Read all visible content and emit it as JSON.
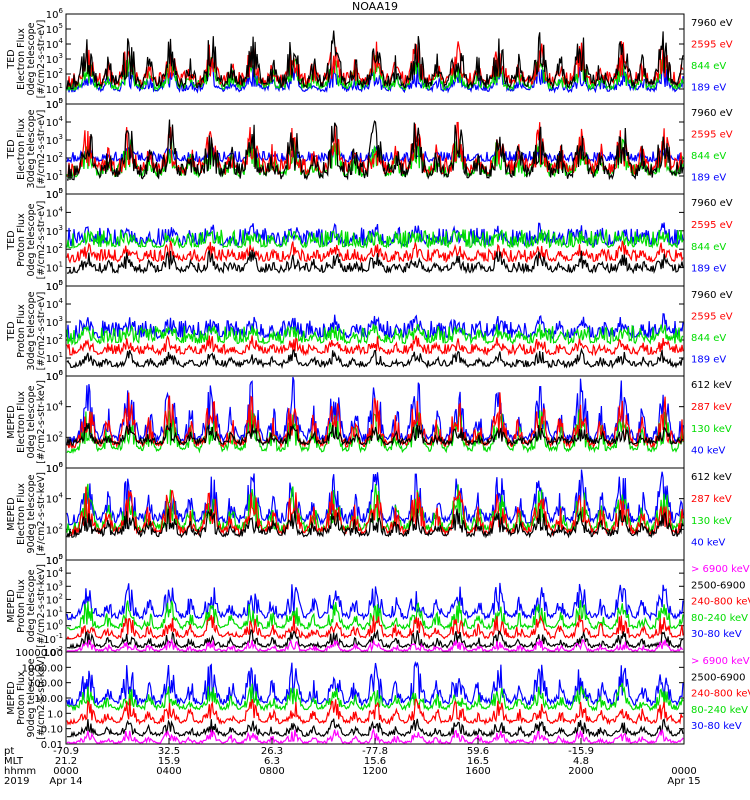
{
  "title": "NOAA19",
  "colors": {
    "black": "#000000",
    "red": "#ff0000",
    "green": "#00dd00",
    "blue": "#0000ff",
    "magenta": "#ff00ff"
  },
  "chart_data": [
    {
      "type": "line",
      "instrument": "TED",
      "ylabel": [
        "TED",
        "Electron Flux",
        "0deg telescope",
        "[#/cm2-s-str-eV]"
      ],
      "yscale": "log",
      "ylim": [
        1,
        1000000
      ],
      "ytick_labels": [
        "10^0",
        "10^1",
        "10^2",
        "10^3",
        "10^4",
        "10^5",
        "10^6"
      ],
      "legend": [
        "7960 eV",
        "2595 eV",
        "844 eV",
        "189 eV"
      ],
      "series": [
        {
          "name": "7960 eV",
          "color": "black",
          "typical": 10,
          "spread": 1.0,
          "peak": 100000
        },
        {
          "name": "2595 eV",
          "color": "red",
          "typical": 15,
          "spread": 1.0,
          "peak": 20000
        },
        {
          "name": "844 eV",
          "color": "green",
          "typical": 8,
          "spread": 0.7,
          "peak": 2000
        },
        {
          "name": "189 eV",
          "color": "blue",
          "typical": 6,
          "spread": 0.5,
          "peak": 500
        }
      ]
    },
    {
      "type": "line",
      "instrument": "TED",
      "ylabel": [
        "TED",
        "Electron Flux",
        "30deg telescope",
        "[#/cm2-s-str-eV]"
      ],
      "yscale": "log",
      "ylim": [
        1,
        100000
      ],
      "ytick_labels": [
        "10^0",
        "10^1",
        "10^2",
        "10^3",
        "10^4",
        "10^5"
      ],
      "legend": [
        "7960 eV",
        "2595 eV",
        "844 eV",
        "189 eV"
      ],
      "series": [
        {
          "name": "7960 eV",
          "color": "black",
          "typical": 6,
          "spread": 1.0,
          "peak": 20000
        },
        {
          "name": "2595 eV",
          "color": "red",
          "typical": 10,
          "spread": 1.0,
          "peak": 10000
        },
        {
          "name": "844 eV",
          "color": "green",
          "typical": 8,
          "spread": 0.8,
          "peak": 2000
        },
        {
          "name": "189 eV",
          "color": "blue",
          "typical": 60,
          "spread": 0.6,
          "peak": 500
        }
      ]
    },
    {
      "type": "line",
      "instrument": "TED",
      "ylabel": [
        "TED",
        "Proton Flux",
        "0deg telescope",
        "[#/cm2-s-str-eV]"
      ],
      "yscale": "log",
      "ylim": [
        1,
        100000
      ],
      "ytick_labels": [
        "10^0",
        "10^1",
        "10^2",
        "10^3",
        "10^4",
        "10^5"
      ],
      "legend": [
        "7960 eV",
        "2595 eV",
        "844 eV",
        "189 eV"
      ],
      "series": [
        {
          "name": "7960 eV",
          "color": "black",
          "typical": 5,
          "spread": 0.6,
          "peak": 100
        },
        {
          "name": "2595 eV",
          "color": "red",
          "typical": 20,
          "spread": 0.7,
          "peak": 300
        },
        {
          "name": "844 eV",
          "color": "green",
          "typical": 120,
          "spread": 1.0,
          "peak": 1000
        },
        {
          "name": "189 eV",
          "color": "blue",
          "typical": 150,
          "spread": 1.0,
          "peak": 3000
        }
      ]
    },
    {
      "type": "line",
      "instrument": "TED",
      "ylabel": [
        "TED",
        "Proton Flux",
        "30deg telescope",
        "[#/cm2-s-str-eV]"
      ],
      "yscale": "log",
      "ylim": [
        1,
        100000
      ],
      "ytick_labels": [
        "10^0",
        "10^1",
        "10^2",
        "10^3",
        "10^4",
        "10^5"
      ],
      "legend": [
        "7960 eV",
        "2595 eV",
        "844 eV",
        "189 eV"
      ],
      "series": [
        {
          "name": "7960 eV",
          "color": "black",
          "typical": 3,
          "spread": 0.4,
          "peak": 30
        },
        {
          "name": "2595 eV",
          "color": "red",
          "typical": 15,
          "spread": 0.6,
          "peak": 200
        },
        {
          "name": "844 eV",
          "color": "green",
          "typical": 60,
          "spread": 1.0,
          "peak": 1000
        },
        {
          "name": "189 eV",
          "color": "blue",
          "typical": 120,
          "spread": 1.0,
          "peak": 3000
        }
      ]
    },
    {
      "type": "line",
      "instrument": "MEPED",
      "ylabel": [
        "MEPED",
        "Electron Flux",
        "0deg telescope",
        "[#/cm2-s-str-keV]"
      ],
      "yscale": "log",
      "ylim": [
        1,
        1000000
      ],
      "ytick_labels": [
        "10^0",
        "10^2",
        "10^4",
        "10^6"
      ],
      "legend": [
        "612 keV",
        "287 keV",
        "130 keV",
        "40 keV"
      ],
      "series": [
        {
          "name": "612 keV",
          "color": "black",
          "typical": 30,
          "spread": 0.5,
          "peak": 1000
        },
        {
          "name": "287 keV",
          "color": "red",
          "typical": 20,
          "spread": 0.5,
          "peak": 100000
        },
        {
          "name": "130 keV",
          "color": "green",
          "typical": 10,
          "spread": 0.4,
          "peak": 10000
        },
        {
          "name": "40 keV",
          "color": "blue",
          "typical": 40,
          "spread": 0.6,
          "peak": 1000000
        }
      ]
    },
    {
      "type": "line",
      "instrument": "MEPED",
      "ylabel": [
        "MEPED",
        "Electron Flux",
        "90deg telescope",
        "[#/cm2-s-str-keV]"
      ],
      "yscale": "log",
      "ylim": [
        1,
        1000000
      ],
      "ytick_labels": [
        "10^0",
        "10^2",
        "10^4",
        "10^6"
      ],
      "legend": [
        "612 keV",
        "287 keV",
        "130 keV",
        "40 keV"
      ],
      "series": [
        {
          "name": "612 keV",
          "color": "black",
          "typical": 30,
          "spread": 0.6,
          "peak": 3000
        },
        {
          "name": "287 keV",
          "color": "red",
          "typical": 40,
          "spread": 0.6,
          "peak": 100000
        },
        {
          "name": "130 keV",
          "color": "green",
          "typical": 60,
          "spread": 0.7,
          "peak": 100000
        },
        {
          "name": "40 keV",
          "color": "blue",
          "typical": 200,
          "spread": 0.8,
          "peak": 1000000
        }
      ]
    },
    {
      "type": "line",
      "instrument": "MEPED",
      "ylabel": [
        "MEPED",
        "Proton Flux",
        "0deg telescope",
        "[#/cm2-s-str-keV]"
      ],
      "yscale": "log",
      "ylim": [
        0.01,
        100000
      ],
      "ytick_labels": [
        "10^-2",
        "10^-1",
        "10^0",
        "10^1",
        "10^2",
        "10^3",
        "10^4",
        "10^5"
      ],
      "legend": [
        "> 6900 keV",
        "2500-6900",
        "240-800 keV",
        "80-240 keV",
        "30-80 keV"
      ],
      "series": [
        {
          "name": "> 6900 keV",
          "color": "magenta",
          "typical": 0.01,
          "spread": 0.2,
          "peak": 0.1
        },
        {
          "name": "2500-6900",
          "color": "black",
          "typical": 0.02,
          "spread": 0.3,
          "peak": 0.5
        },
        {
          "name": "240-800 keV",
          "color": "red",
          "typical": 0.1,
          "spread": 0.3,
          "peak": 10
        },
        {
          "name": "80-240 keV",
          "color": "green",
          "typical": 0.5,
          "spread": 0.3,
          "peak": 100
        },
        {
          "name": "30-80 keV",
          "color": "blue",
          "typical": 3,
          "spread": 0.5,
          "peak": 3000
        }
      ]
    },
    {
      "type": "line",
      "instrument": "MEPED",
      "ylabel": [
        "MEPED",
        "Proton Flux",
        "90deg telescope",
        "[#/cm2-s-str-keV]"
      ],
      "yscale": "log",
      "ylim": [
        0.01,
        10000
      ],
      "ytick_labels": [
        "0.01",
        "0.10",
        "1.0",
        "10.00",
        "100.00",
        "1000.00",
        "10000.00"
      ],
      "legend": [
        "> 6900 keV",
        "2500-6900",
        "240-800 keV",
        "80-240 keV",
        "30-80 keV"
      ],
      "series": [
        {
          "name": "> 6900 keV",
          "color": "magenta",
          "typical": 0.01,
          "spread": 0.2,
          "peak": 0.1
        },
        {
          "name": "2500-6900",
          "color": "black",
          "typical": 0.03,
          "spread": 0.3,
          "peak": 0.5
        },
        {
          "name": "240-800 keV",
          "color": "red",
          "typical": 0.2,
          "spread": 0.3,
          "peak": 10
        },
        {
          "name": "80-240 keV",
          "color": "green",
          "typical": 1.5,
          "spread": 0.4,
          "peak": 100
        },
        {
          "name": "30-80 keV",
          "color": "blue",
          "typical": 3,
          "spread": 0.5,
          "peak": 3000
        }
      ]
    }
  ],
  "xaxis": {
    "row_labels": [
      "pt",
      "MLT",
      "hhmm",
      "2019"
    ],
    "ticks": [
      {
        "pt": "-70.9",
        "mlt": "21.2",
        "hhmm": "0000",
        "date": "Apr 14"
      },
      {
        "pt": "32.5",
        "mlt": "15.9",
        "hhmm": "0400",
        "date": ""
      },
      {
        "pt": "26.3",
        "mlt": "6.3",
        "hhmm": "0800",
        "date": ""
      },
      {
        "pt": "-77.8",
        "mlt": "15.6",
        "hhmm": "1200",
        "date": ""
      },
      {
        "pt": "59.6",
        "mlt": "16.5",
        "hhmm": "1600",
        "date": ""
      },
      {
        "pt": "-15.9",
        "mlt": "4.8",
        "hhmm": "2000",
        "date": ""
      },
      {
        "pt": "",
        "mlt": "",
        "hhmm": "0000",
        "date": "Apr 15"
      }
    ]
  }
}
